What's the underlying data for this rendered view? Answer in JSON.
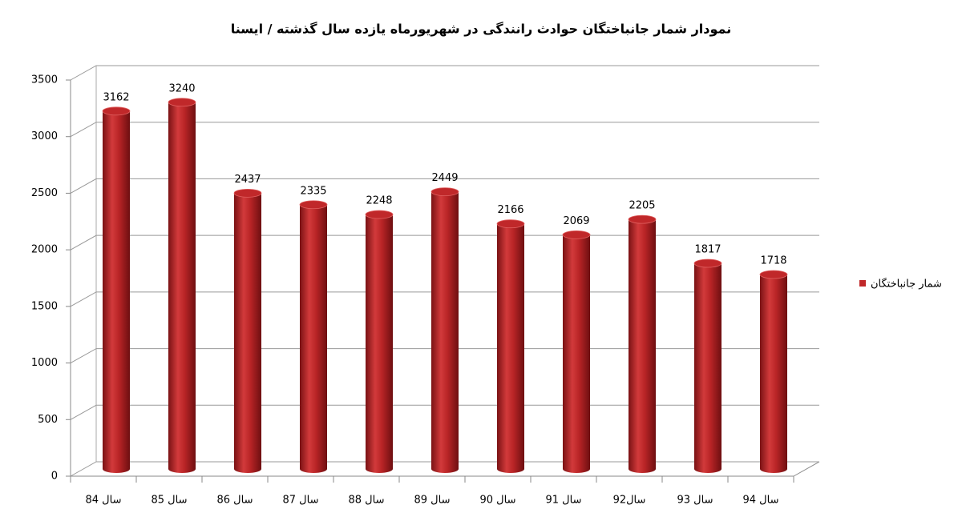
{
  "chart_data": {
    "type": "bar",
    "title": "نمودار شمار جانباختگان حوادث رانندگی در شهریورماه یازده سال گذشته / ایسنا",
    "categories": [
      "سال 84",
      "سال 85",
      "سال 86",
      "سال 87",
      "سال 88",
      "سال 89",
      "سال 90",
      "سال 91",
      "سال92",
      "سال 93",
      "سال 94"
    ],
    "series": [
      {
        "name": "شمار جانباختگان",
        "color": "#c0282a",
        "values": [
          3162,
          3240,
          2437,
          2335,
          2248,
          2449,
          2166,
          2069,
          2205,
          1817,
          1718
        ]
      }
    ],
    "ylim": [
      0,
      3500
    ],
    "yticks": [
      0,
      500,
      1000,
      1500,
      2000,
      2500,
      3000,
      3500
    ],
    "grid": true,
    "legend": "right"
  }
}
